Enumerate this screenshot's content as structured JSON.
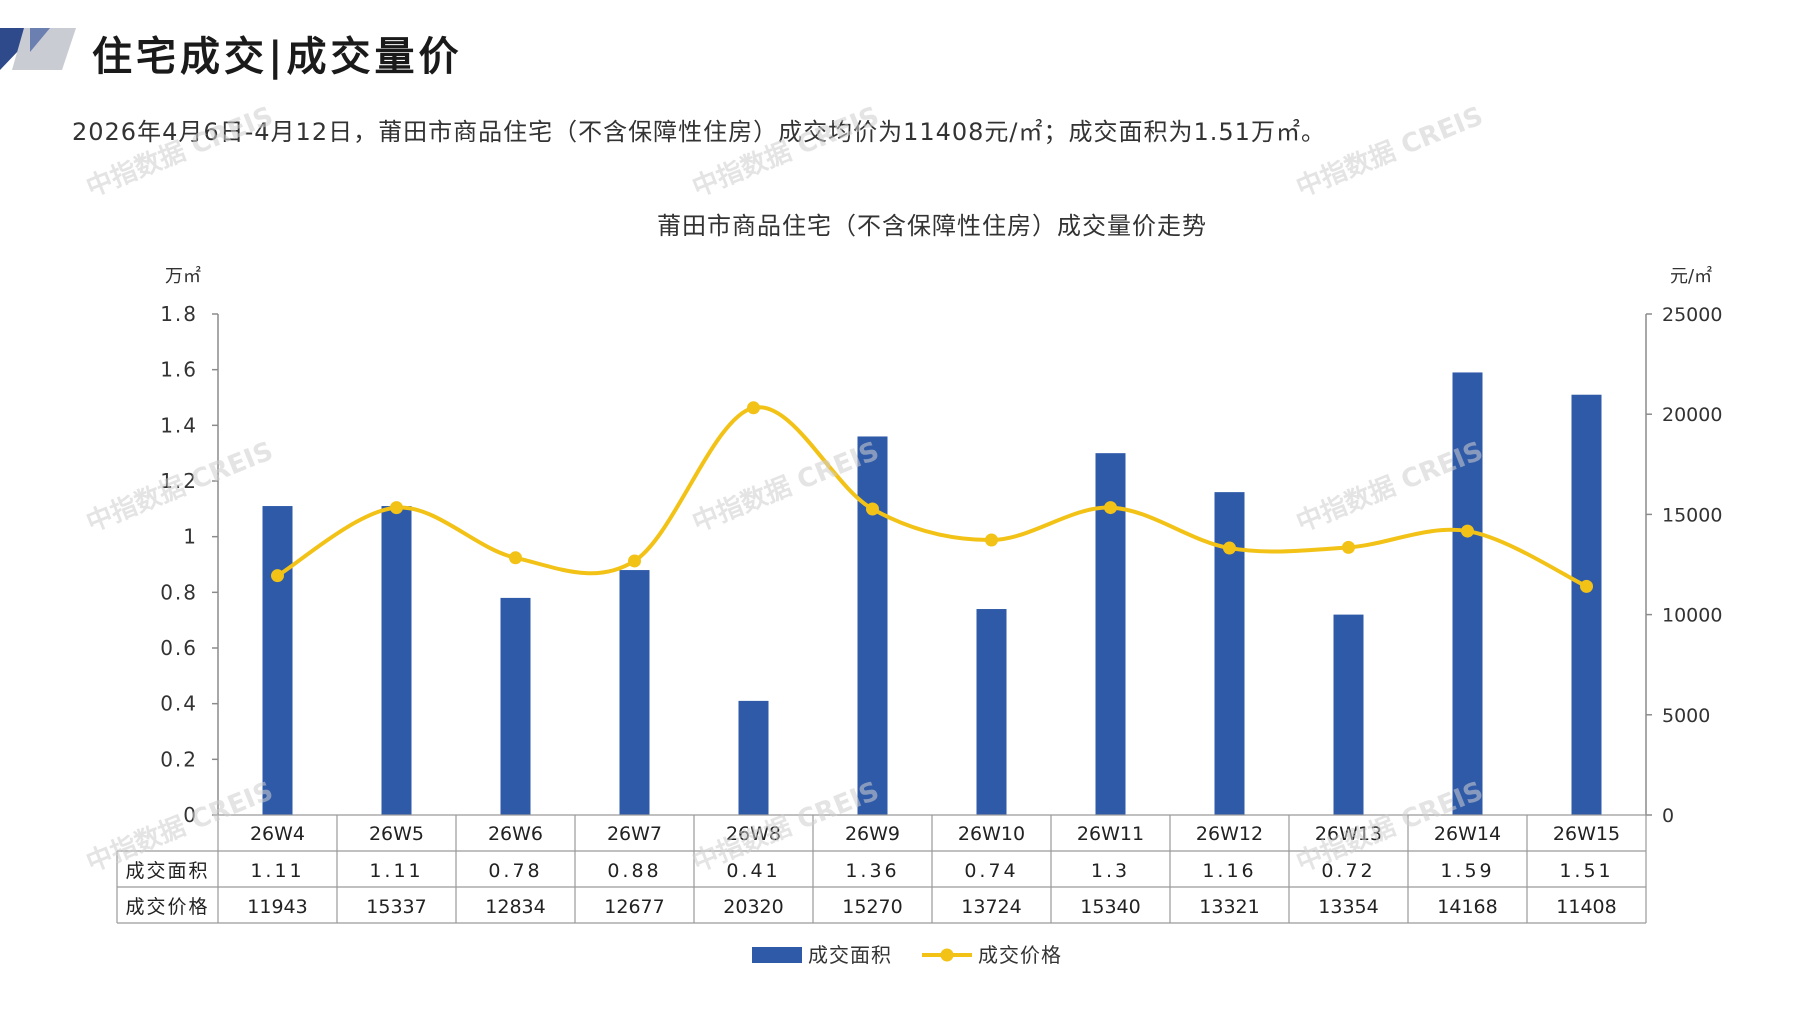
{
  "header": {
    "title": "住宅成交|成交量价",
    "logo_icon": "triangle-logo-icon"
  },
  "summary": "2026年4月6日-4月12日，莆田市商品住宅（不含保障性住房）成交均价为11408元/㎡；成交面积为1.51万㎡。",
  "watermark_text": "中指数据 CREIS",
  "colors": {
    "bar": "#2f5aa8",
    "line": "#f2c217",
    "axis": "#8c8c8c"
  },
  "chart_data": {
    "type": "bar",
    "title": "莆田市商品住宅（不含保障性住房）成交量价走势",
    "categories": [
      "26W4",
      "26W5",
      "26W6",
      "26W7",
      "26W8",
      "26W9",
      "26W10",
      "26W11",
      "26W12",
      "26W13",
      "26W14",
      "26W15"
    ],
    "series": [
      {
        "name": "成交面积",
        "type": "bar",
        "axis": "left",
        "values": [
          1.11,
          1.11,
          0.78,
          0.88,
          0.41,
          1.36,
          0.74,
          1.3,
          1.16,
          0.72,
          1.59,
          1.51
        ]
      },
      {
        "name": "成交价格",
        "type": "line",
        "axis": "right",
        "values": [
          11943,
          15337,
          12834,
          12677,
          20320,
          15270,
          13724,
          15340,
          13321,
          13354,
          14168,
          11408
        ]
      }
    ],
    "y_left": {
      "unit": "万㎡",
      "ylim": [
        0,
        1.8
      ],
      "ticks": [
        "0",
        "0.2",
        "0.4",
        "0.6",
        "0.8",
        "1",
        "1.2",
        "1.4",
        "1.6",
        "1.8"
      ]
    },
    "y_right": {
      "unit": "元/㎡",
      "ylim": [
        0,
        25000
      ],
      "ticks": [
        "0",
        "5000",
        "10000",
        "15000",
        "20000",
        "25000"
      ]
    },
    "table_rows": [
      {
        "label": "成交面积",
        "values": [
          "1.11",
          "1.11",
          "0.78",
          "0.88",
          "0.41",
          "1.36",
          "0.74",
          "1.3",
          "1.16",
          "0.72",
          "1.59",
          "1.51"
        ]
      },
      {
        "label": "成交价格",
        "values": [
          "11943",
          "15337",
          "12834",
          "12677",
          "20320",
          "15270",
          "13724",
          "15340",
          "13321",
          "13354",
          "14168",
          "11408"
        ]
      }
    ],
    "legend_position": "bottom",
    "grid": false
  }
}
